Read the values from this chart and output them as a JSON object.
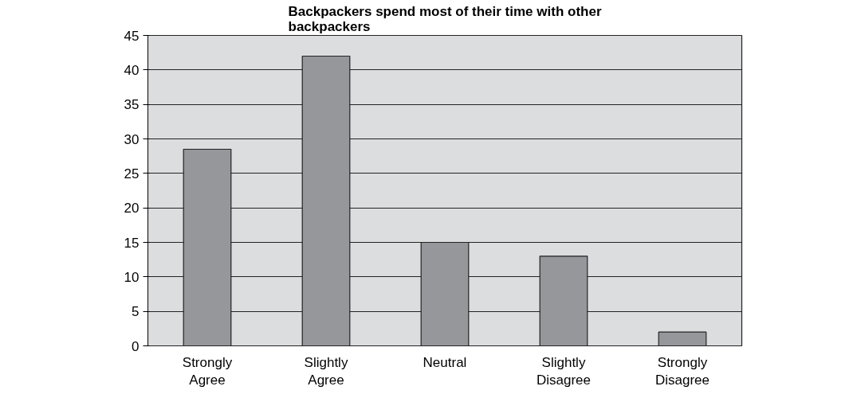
{
  "chart_data": {
    "type": "bar",
    "title": "Backpackers spend most of their time with other\nbackpackers",
    "categories": [
      "Strongly\nAgree",
      "Slightly\nAgree",
      "Neutral",
      "Slightly\nDisagree",
      "Strongly\nDisagree"
    ],
    "values": [
      28.5,
      42,
      15,
      13,
      2
    ],
    "color": "#96979b",
    "ylim": [
      0,
      45
    ],
    "yticks": [
      0,
      5,
      10,
      15,
      20,
      25,
      30,
      35,
      40,
      45
    ],
    "grid": "y"
  }
}
